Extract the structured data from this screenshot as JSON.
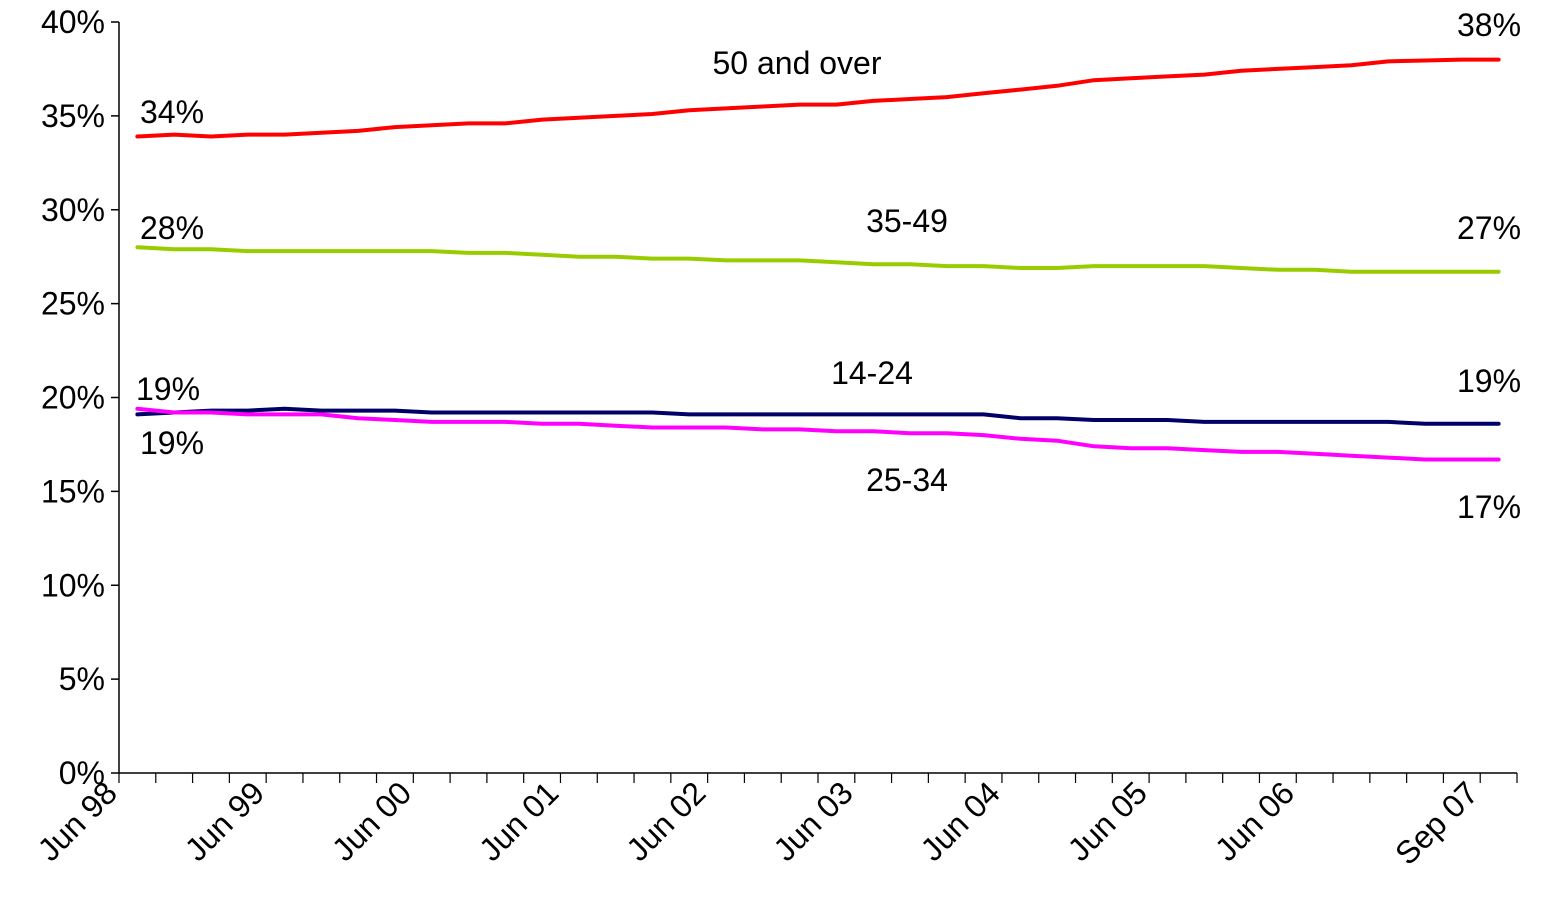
{
  "chart_data": {
    "type": "line",
    "title": "",
    "xlabel": "",
    "ylabel": "",
    "ylim": [
      0,
      40
    ],
    "y_ticks": [
      "0%",
      "5%",
      "10%",
      "15%",
      "20%",
      "25%",
      "30%",
      "35%",
      "40%"
    ],
    "x_tick_labels": [
      "Jun 98",
      "Jun 99",
      "Jun 00",
      "Jun 01",
      "Jun 02",
      "Jun 03",
      "Jun 04",
      "Jun 05",
      "Jun 06",
      "Sep 07"
    ],
    "grid": false,
    "legend": "none (series labelled inline)",
    "series": [
      {
        "name": "50 and over",
        "color": "#ff0000",
        "values": [
          33.9,
          34.0,
          33.9,
          34.0,
          34.0,
          34.1,
          34.2,
          34.4,
          34.5,
          34.6,
          34.6,
          34.8,
          34.9,
          35.0,
          35.1,
          35.3,
          35.4,
          35.5,
          35.6,
          35.6,
          35.8,
          35.9,
          36.0,
          36.2,
          36.4,
          36.6,
          36.9,
          37.0,
          37.1,
          37.2,
          37.4,
          37.5,
          37.6,
          37.7,
          37.9,
          37.95,
          38.0,
          38.0
        ]
      },
      {
        "name": "35-49",
        "color": "#99cc00",
        "values": [
          28.0,
          27.9,
          27.9,
          27.8,
          27.8,
          27.8,
          27.8,
          27.8,
          27.8,
          27.7,
          27.7,
          27.6,
          27.5,
          27.5,
          27.4,
          27.4,
          27.3,
          27.3,
          27.3,
          27.2,
          27.1,
          27.1,
          27.0,
          27.0,
          26.9,
          26.9,
          27.0,
          27.0,
          27.0,
          27.0,
          26.9,
          26.8,
          26.8,
          26.7,
          26.7,
          26.7,
          26.7,
          26.7
        ]
      },
      {
        "name": "14-24",
        "color": "#000066",
        "values": [
          19.1,
          19.2,
          19.3,
          19.3,
          19.4,
          19.3,
          19.3,
          19.3,
          19.2,
          19.2,
          19.2,
          19.2,
          19.2,
          19.2,
          19.2,
          19.1,
          19.1,
          19.1,
          19.1,
          19.1,
          19.1,
          19.1,
          19.1,
          19.1,
          18.9,
          18.9,
          18.8,
          18.8,
          18.8,
          18.7,
          18.7,
          18.7,
          18.7,
          18.7,
          18.7,
          18.6,
          18.6,
          18.6
        ]
      },
      {
        "name": "25-34",
        "color": "#ff00ff",
        "values": [
          19.4,
          19.2,
          19.2,
          19.1,
          19.1,
          19.1,
          18.9,
          18.8,
          18.7,
          18.7,
          18.7,
          18.6,
          18.6,
          18.5,
          18.4,
          18.4,
          18.4,
          18.3,
          18.3,
          18.2,
          18.2,
          18.1,
          18.1,
          18.0,
          17.8,
          17.7,
          17.4,
          17.3,
          17.3,
          17.2,
          17.1,
          17.1,
          17.0,
          16.9,
          16.8,
          16.7,
          16.7,
          16.7
        ]
      }
    ],
    "annotations": {
      "s50_name": "50 and over",
      "s50_start": "34%",
      "s50_end": "38%",
      "s35_name": "35-49",
      "s35_start": "28%",
      "s35_end": "27%",
      "s14_name": "14-24",
      "s14_start": "19%",
      "s14_end": "19%",
      "s25_name": "25-34",
      "s25_start": "19%",
      "s25_end": "17%"
    }
  }
}
